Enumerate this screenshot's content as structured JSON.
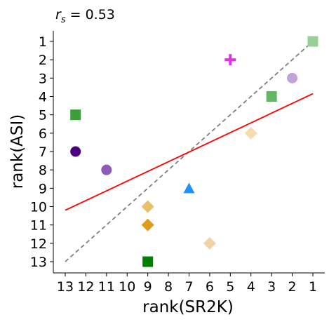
{
  "chart_data": {
    "type": "scatter",
    "title": "r_s = 0.53",
    "title_parts": {
      "var": "r",
      "sub": "s",
      "rest": " = 0.53"
    },
    "xlabel": "rank(SR2K)",
    "ylabel": "rank(ASI)",
    "xlim": [
      13.5,
      0.5
    ],
    "ylim": [
      13.5,
      0.5
    ],
    "x_reversed": true,
    "y_reversed": true,
    "xticks": [
      13,
      12,
      11,
      10,
      9,
      8,
      7,
      6,
      5,
      4,
      3,
      2,
      1
    ],
    "yticks": [
      1,
      2,
      3,
      4,
      5,
      6,
      7,
      8,
      9,
      10,
      11,
      12,
      13
    ],
    "grid": false,
    "points": [
      {
        "x": 1,
        "y": 1,
        "marker": "square",
        "color": "#98d098"
      },
      {
        "x": 5,
        "y": 2,
        "marker": "plus",
        "color": "#e532e0"
      },
      {
        "x": 2,
        "y": 3,
        "marker": "circle",
        "color": "#c3a2d6"
      },
      {
        "x": 3,
        "y": 4,
        "marker": "square",
        "color": "#66b466"
      },
      {
        "x": 12.5,
        "y": 5,
        "marker": "square",
        "color": "#3c9d3c"
      },
      {
        "x": 4,
        "y": 6,
        "marker": "diamond",
        "color": "#f5dcae"
      },
      {
        "x": 12.5,
        "y": 7,
        "marker": "circle",
        "color": "#4b0082"
      },
      {
        "x": 11,
        "y": 8,
        "marker": "circle",
        "color": "#8f5bb6"
      },
      {
        "x": 7,
        "y": 9,
        "marker": "triangle",
        "color": "#1e90ff"
      },
      {
        "x": 9,
        "y": 10,
        "marker": "diamond",
        "color": "#e8c06e"
      },
      {
        "x": 9,
        "y": 11,
        "marker": "diamond",
        "color": "#e09a1c"
      },
      {
        "x": 6,
        "y": 12,
        "marker": "diamond",
        "color": "#f0d3a4"
      },
      {
        "x": 9,
        "y": 13,
        "marker": "square",
        "color": "#008000"
      }
    ],
    "lines": [
      {
        "kind": "identity",
        "from": [
          13,
          13
        ],
        "to": [
          1,
          1
        ],
        "color": "#808080",
        "dashed": true
      },
      {
        "kind": "fit",
        "from": [
          13,
          10.2
        ],
        "to": [
          1,
          3.85
        ],
        "color": "#ff0000",
        "dashed": false
      }
    ]
  }
}
